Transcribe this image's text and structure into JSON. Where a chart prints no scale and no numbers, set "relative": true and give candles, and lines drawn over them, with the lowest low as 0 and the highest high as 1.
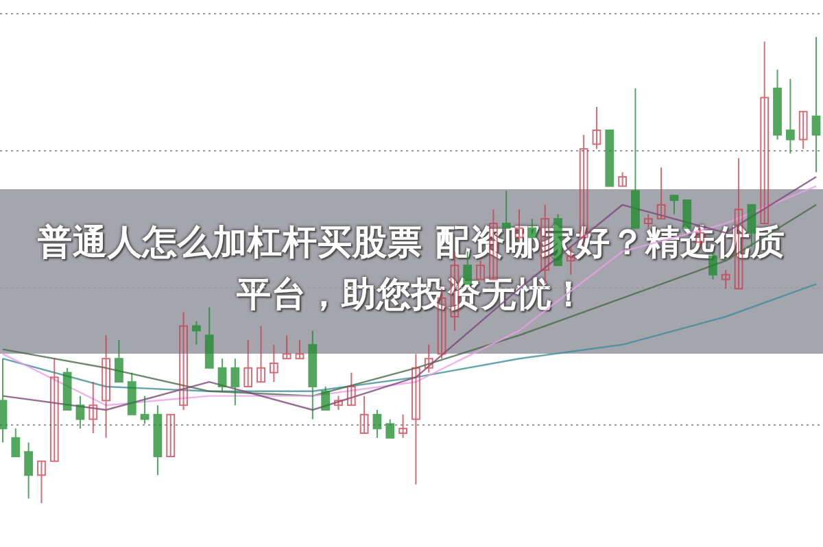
{
  "chart_data": {
    "type": "candlestick",
    "title": "普通人怎么加杠杆买股票 配资哪家好？精选优质平台，助您投资无忧！",
    "relative": true,
    "grid": true,
    "categories": [
      null,
      null,
      null,
      null,
      null,
      null,
      null,
      null,
      null,
      null,
      null,
      null,
      null,
      null,
      null,
      null,
      null,
      null,
      null,
      null,
      null,
      null,
      null,
      null,
      null,
      null,
      null,
      null,
      null,
      null,
      null,
      null,
      null,
      null,
      null,
      null,
      null,
      null,
      null,
      null,
      null,
      null,
      null,
      null,
      null,
      null,
      null,
      null,
      null,
      null,
      null,
      null,
      null,
      null,
      null,
      null,
      null,
      null,
      null,
      null,
      null,
      null,
      null,
      null
    ],
    "ohlc": [
      [
        0.22,
        0.31,
        0.13,
        0.16
      ],
      [
        0.14,
        0.16,
        0.1,
        0.1
      ],
      [
        0.11,
        0.13,
        0.01,
        0.06
      ],
      [
        0.06,
        0.09,
        0,
        0.09
      ],
      [
        0.09,
        0.31,
        0.09,
        0.27
      ],
      [
        0.28,
        0.29,
        0.2,
        0.2
      ],
      [
        0.21,
        0.23,
        0.16,
        0.18
      ],
      [
        0.18,
        0.26,
        0.15,
        0.21
      ],
      [
        0.22,
        0.36,
        0.14,
        0.31
      ],
      [
        0.31,
        0.35,
        0.26,
        0.26
      ],
      [
        0.26,
        0.28,
        0.19,
        0.19
      ],
      [
        0.19,
        0.23,
        0.17,
        0.18
      ],
      [
        0.19,
        0.21,
        0.06,
        0.1
      ],
      [
        0.1,
        0.19,
        0.1,
        0.19
      ],
      [
        0.21,
        0.41,
        0.2,
        0.38
      ],
      [
        0.38,
        0.39,
        0.34,
        0.37
      ],
      [
        0.36,
        0.42,
        0.29,
        0.29
      ],
      [
        0.29,
        0.31,
        0.24,
        0.25
      ],
      [
        0.29,
        0.31,
        0.21,
        0.25
      ],
      [
        0.25,
        0.35,
        0.25,
        0.29
      ],
      [
        0.26,
        0.38,
        0.26,
        0.29
      ],
      [
        0.28,
        0.34,
        0.26,
        0.3
      ],
      [
        0.31,
        0.36,
        0.31,
        0.32
      ],
      [
        0.31,
        0.35,
        0.31,
        0.32
      ],
      [
        0.34,
        0.37,
        0.18,
        0.25
      ],
      [
        0.24,
        0.25,
        0.2,
        0.2
      ],
      [
        0.21,
        0.23,
        0.2,
        0.22
      ],
      [
        0.21,
        0.28,
        0.21,
        0.25
      ],
      [
        0.15,
        0.23,
        0.15,
        0.19
      ],
      [
        0.19,
        0.2,
        0.14,
        0.16
      ],
      [
        0.17,
        0.18,
        0.14,
        0.14
      ],
      [
        0.15,
        0.19,
        0.14,
        0.16
      ],
      [
        0.18,
        0.32,
        0.04,
        0.29
      ],
      [
        0.29,
        0.34,
        0.28,
        0.31
      ],
      [
        0.32,
        0.46,
        0.31,
        0.44
      ],
      [
        0.4,
        0.54,
        0.37,
        0.51
      ],
      [
        0.51,
        0.54,
        0.47,
        0.47
      ],
      [
        0.48,
        0.52,
        0.48,
        0.51
      ],
      [
        0.48,
        0.63,
        0.48,
        0.6
      ],
      [
        0.6,
        0.67,
        0.59,
        0.59
      ],
      [
        0.57,
        0.63,
        0.56,
        0.59
      ],
      [
        0.59,
        0.61,
        0.57,
        0.57
      ],
      [
        0.5,
        0.64,
        0.47,
        0.61
      ],
      [
        0.61,
        0.62,
        0.51,
        0.51
      ],
      [
        0.52,
        0.55,
        0.49,
        0.53
      ],
      [
        0.57,
        0.79,
        0.55,
        0.76
      ],
      [
        0.77,
        0.85,
        0.76,
        0.8
      ],
      [
        0.8,
        0.8,
        0.68,
        0.68
      ],
      [
        0.68,
        0.71,
        0.68,
        0.7
      ],
      [
        0.67,
        0.89,
        0.59,
        0.59
      ],
      [
        0.6,
        0.62,
        0.59,
        0.61
      ],
      [
        0.61,
        0.72,
        0.61,
        0.64
      ],
      [
        0.66,
        0.66,
        0.62,
        0.65
      ],
      [
        0.65,
        0.65,
        0.59,
        0.59
      ],
      [
        0.56,
        0.59,
        0.55,
        0.58
      ],
      [
        0.53,
        0.54,
        0.48,
        0.49
      ],
      [
        0.48,
        0.5,
        0.46,
        0.49
      ],
      [
        0.46,
        0.74,
        0.46,
        0.63
      ],
      [
        0.64,
        0.64,
        0.55,
        0.58
      ],
      [
        0.6,
        0.99,
        0.6,
        0.87
      ],
      [
        0.89,
        0.93,
        0.78,
        0.79
      ],
      [
        0.8,
        0.91,
        0.75,
        0.78
      ],
      [
        0.78,
        0.84,
        0.76,
        0.84
      ],
      [
        0.83,
        1.0,
        0.71,
        0.79
      ]
    ],
    "colors": [
      "#1a8a2a",
      "#1a8a2a",
      "#1a8a2a",
      "#c83c4c",
      "#c83c4c",
      "#1a8a2a",
      "#1a8a2a",
      "#c83c4c",
      "#c83c4c",
      "#1a8a2a",
      "#1a8a2a",
      "#1a8a2a",
      "#1a8a2a",
      "#c83c4c",
      "#c83c4c",
      "#1a8a2a",
      "#1a8a2a",
      "#1a8a2a",
      "#1a8a2a",
      "#c83c4c",
      "#c83c4c",
      "#c83c4c",
      "#c83c4c",
      "#c83c4c",
      "#1a8a2a",
      "#1a8a2a",
      "#c83c4c",
      "#c83c4c",
      "#c83c4c",
      "#1a8a2a",
      "#1a8a2a",
      "#c83c4c",
      "#c83c4c",
      "#c83c4c",
      "#c83c4c",
      "#c83c4c",
      "#1a8a2a",
      "#c83c4c",
      "#c83c4c",
      "#1a8a2a",
      "#c83c4c",
      "#1a8a2a",
      "#c83c4c",
      "#1a8a2a",
      "#c83c4c",
      "#c83c4c",
      "#c83c4c",
      "#1a8a2a",
      "#c83c4c",
      "#1a8a2a",
      "#c83c4c",
      "#c83c4c",
      "#1a8a2a",
      "#1a8a2a",
      "#c83c4c",
      "#1a8a2a",
      "#c83c4c",
      "#c83c4c",
      "#1a8a2a",
      "#c83c4c",
      "#1a8a2a",
      "#1a8a2a",
      "#c83c4c",
      "#1a8a2a"
    ],
    "series": [
      {
        "type": "line",
        "color": "#3f8f9a",
        "values": [
          0.31,
          null,
          null,
          null,
          null,
          null,
          null,
          null,
          0.25,
          null,
          null,
          null,
          null,
          null,
          null,
          null,
          0.24,
          null,
          null,
          null,
          null,
          null,
          null,
          null,
          0.24,
          null,
          null,
          null,
          null,
          null,
          null,
          null,
          0.27,
          null,
          null,
          null,
          null,
          null,
          null,
          null,
          0.31,
          null,
          null,
          null,
          null,
          null,
          null,
          null,
          0.34,
          null,
          null,
          null,
          null,
          null,
          null,
          null,
          0.4,
          null,
          null,
          null,
          null,
          null,
          null,
          0.47
        ]
      },
      {
        "type": "line",
        "color": "#4a6b4a",
        "values": [
          0.33,
          null,
          null,
          null,
          null,
          null,
          null,
          null,
          0.29,
          null,
          null,
          null,
          null,
          null,
          null,
          null,
          0.24,
          null,
          null,
          null,
          null,
          null,
          null,
          null,
          0.23,
          null,
          null,
          null,
          null,
          null,
          null,
          null,
          0.29,
          null,
          null,
          null,
          null,
          null,
          null,
          null,
          0.36,
          null,
          null,
          null,
          null,
          null,
          null,
          null,
          0.44,
          null,
          null,
          null,
          null,
          null,
          null,
          null,
          0.52,
          null,
          null,
          null,
          null,
          null,
          null,
          0.64
        ]
      },
      {
        "type": "line",
        "color": "#e8a0e8",
        "values": [
          0.32,
          null,
          null,
          null,
          null,
          null,
          null,
          null,
          0.21,
          null,
          null,
          null,
          null,
          null,
          null,
          null,
          0.23,
          null,
          null,
          null,
          null,
          null,
          null,
          null,
          0.23,
          null,
          null,
          null,
          null,
          null,
          null,
          null,
          0.26,
          null,
          null,
          null,
          null,
          null,
          null,
          null,
          0.37,
          null,
          null,
          null,
          null,
          null,
          null,
          null,
          0.54,
          null,
          null,
          null,
          null,
          null,
          null,
          null,
          0.6,
          null,
          null,
          null,
          null,
          null,
          null,
          0.68
        ]
      },
      {
        "type": "line",
        "color": "#7a4a7a",
        "values": [
          0.23,
          null,
          null,
          null,
          null,
          null,
          null,
          null,
          0.2,
          null,
          null,
          null,
          null,
          null,
          null,
          null,
          0.26,
          null,
          null,
          null,
          null,
          null,
          null,
          null,
          0.2,
          null,
          null,
          null,
          null,
          null,
          null,
          null,
          0.27,
          null,
          null,
          null,
          null,
          null,
          null,
          null,
          0.46,
          null,
          null,
          null,
          null,
          null,
          null,
          null,
          0.64,
          null,
          null,
          null,
          null,
          null,
          null,
          null,
          0.58,
          null,
          null,
          null,
          null,
          null,
          null,
          0.7
        ]
      }
    ]
  }
}
